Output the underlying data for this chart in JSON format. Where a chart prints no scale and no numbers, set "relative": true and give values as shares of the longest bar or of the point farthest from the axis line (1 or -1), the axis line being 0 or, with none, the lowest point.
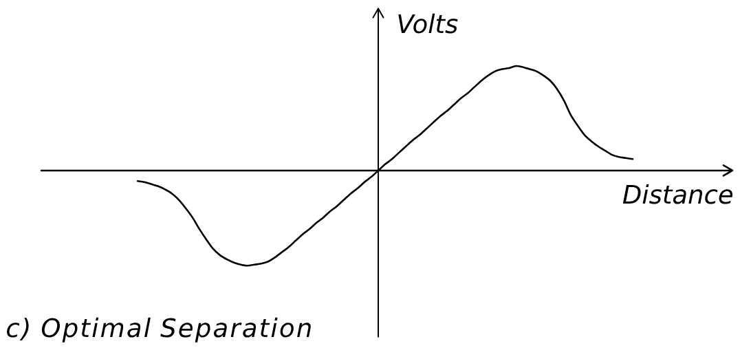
{
  "chart_data": {
    "type": "line",
    "xlabel": "Distance",
    "ylabel": "Volts",
    "annotations": [
      "c) Optimal Separation"
    ],
    "relative": true,
    "categories": [
      null,
      null,
      null,
      null,
      null,
      null,
      null,
      null,
      null,
      null,
      null,
      null,
      null,
      null,
      null,
      null,
      null,
      null,
      null,
      null,
      null,
      null,
      null,
      null,
      null,
      null,
      null,
      null,
      null,
      null,
      null,
      null,
      null,
      null,
      null,
      null,
      null,
      null,
      null,
      null,
      null,
      null,
      null,
      null,
      null,
      null,
      null,
      null,
      null,
      null,
      null,
      null,
      null,
      null,
      null,
      null,
      null,
      null,
      null,
      null,
      null,
      null,
      null,
      null,
      null,
      null,
      null,
      null,
      null,
      null,
      null,
      null,
      null,
      null,
      null,
      null,
      null,
      null,
      null,
      null,
      null,
      null,
      null,
      null,
      null,
      null,
      null,
      null,
      null,
      null,
      null,
      null,
      null,
      null,
      null,
      null,
      null,
      null,
      null,
      null,
      null
    ],
    "series": [
      {
        "color": "#000000",
        "values": [
          null,
          null,
          null,
          null,
          null,
          null,
          null,
          null,
          null,
          null,
          null,
          null,
          null,
          null,
          null,
          -0.1,
          -0.11,
          -0.13,
          -0.15,
          -0.18,
          -0.22,
          -0.28,
          -0.36,
          -0.45,
          -0.56,
          -0.66,
          -0.75,
          -0.81,
          -0.85,
          -0.88,
          -0.9,
          -0.91,
          -0.9,
          -0.89,
          -0.87,
          -0.83,
          -0.78,
          -0.73,
          -0.67,
          -0.61,
          -0.56,
          -0.5,
          -0.45,
          -0.39,
          -0.34,
          -0.28,
          -0.22,
          -0.17,
          -0.11,
          -0.06,
          0,
          0.06,
          0.11,
          0.17,
          0.23,
          0.29,
          0.34,
          0.4,
          0.46,
          0.52,
          0.57,
          0.63,
          0.69,
          0.74,
          0.8,
          0.86,
          0.91,
          0.95,
          0.97,
          0.98,
          1.0,
          0.99,
          0.97,
          0.95,
          0.91,
          0.86,
          0.78,
          0.67,
          0.53,
          0.43,
          0.34,
          0.28,
          0.23,
          0.19,
          0.15,
          0.13,
          0.12,
          0.11,
          null,
          null,
          null,
          null,
          null,
          null,
          null,
          null,
          null,
          null,
          null,
          null,
          null
        ]
      }
    ]
  }
}
